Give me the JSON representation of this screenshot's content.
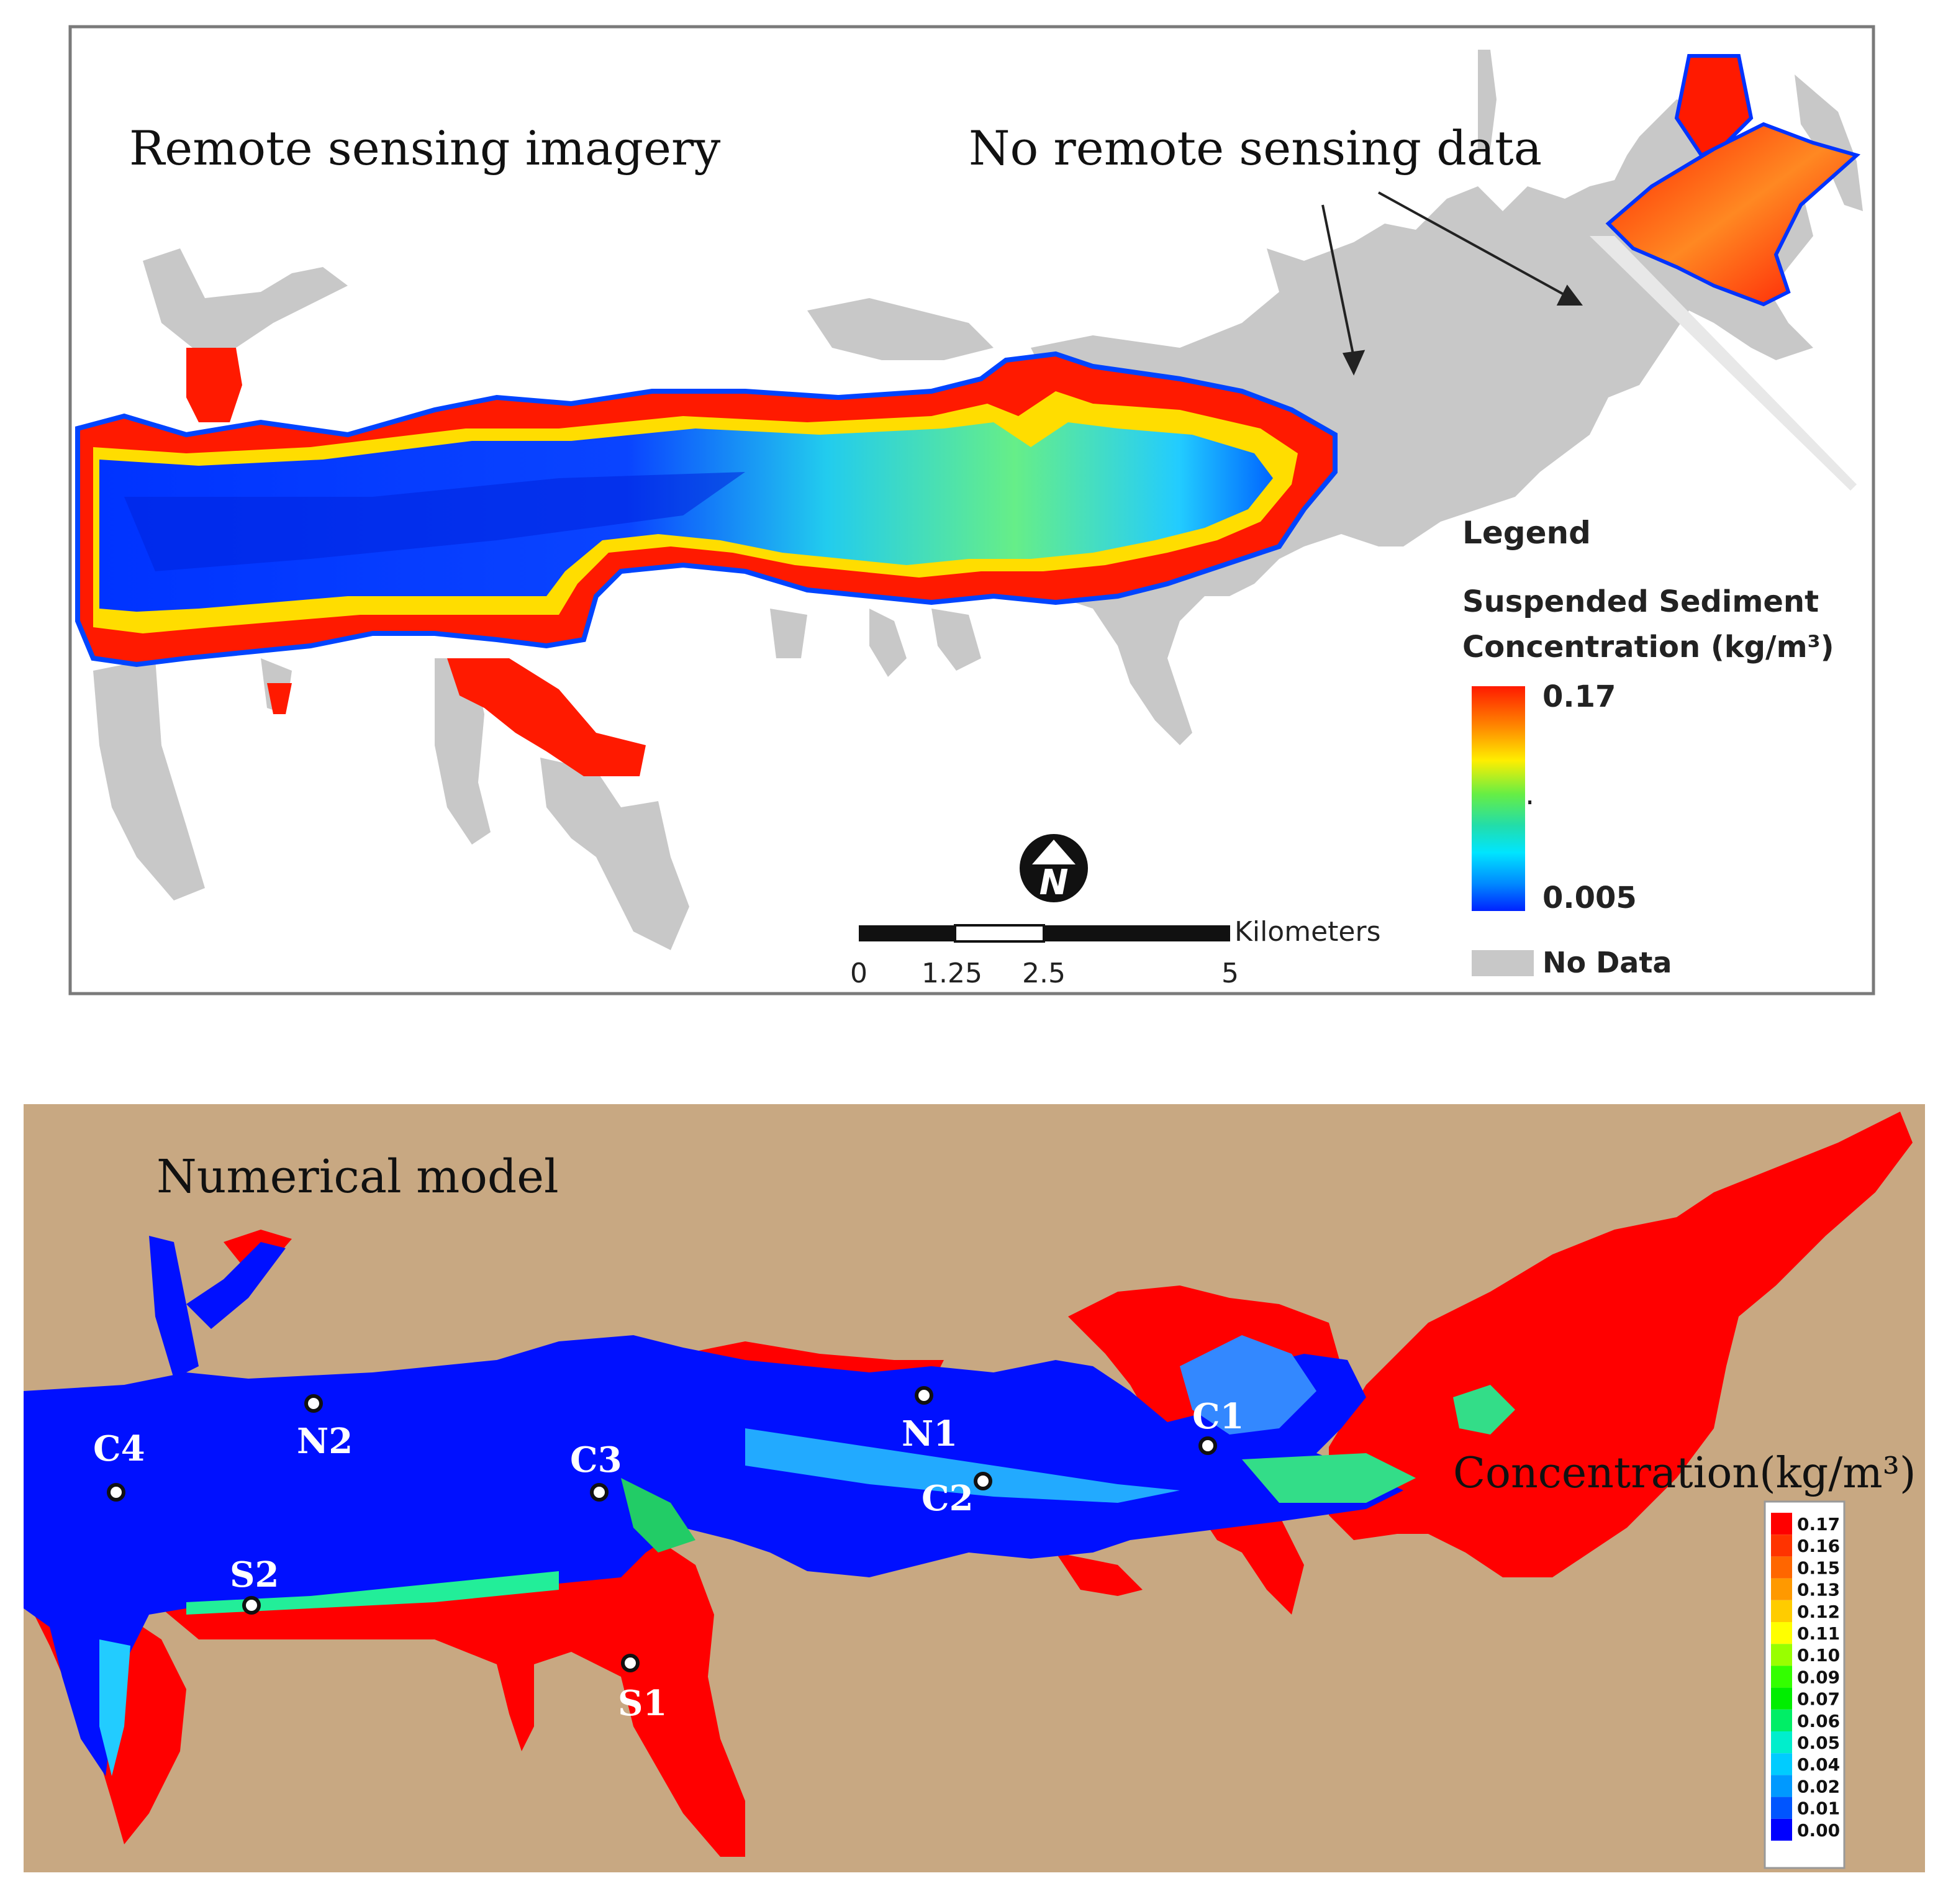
{
  "panel_top": {
    "title": "Remote sensing imagery",
    "annotation": "No remote sensing data",
    "legend": {
      "heading": "Legend",
      "subtitle_line1": "Suspended Sediment",
      "subtitle_line2": "Concentration (kg/m³)",
      "max_label": "0.17",
      "mid_label": ".",
      "min_label": "0.005",
      "nodata_label": "No Data",
      "gradient_colors": [
        "#ff1a00",
        "#ff8800",
        "#ffee00",
        "#66ee44",
        "#22ddaa",
        "#00e5ff",
        "#0088ff",
        "#0022ff"
      ],
      "nodata_color": "#c8c8c8"
    },
    "north_arrow_letter": "N",
    "scale_bar": {
      "unit": "Kilometers",
      "ticks": [
        "0",
        "1.25",
        "2.5",
        "5"
      ]
    }
  },
  "panel_bottom": {
    "title": "Numerical model",
    "legend_title": "Concentration(kg/m³)",
    "legend_levels": [
      "0.17",
      "0.16",
      "0.15",
      "0.13",
      "0.12",
      "0.11",
      "0.10",
      "0.09",
      "0.07",
      "0.06",
      "0.05",
      "0.04",
      "0.02",
      "0.01",
      "0.00"
    ],
    "legend_colors": [
      "#ff0000",
      "#ff3300",
      "#ff6600",
      "#ff9900",
      "#ffcc00",
      "#ffff00",
      "#99ff00",
      "#33ff00",
      "#00ee00",
      "#00ee66",
      "#00eecc",
      "#00ccff",
      "#0099ff",
      "#0055ff",
      "#0000ff"
    ],
    "land_color": "#c8a882",
    "stations": [
      {
        "id": "C4",
        "label": "C4"
      },
      {
        "id": "N2",
        "label": "N2"
      },
      {
        "id": "S2",
        "label": "S2"
      },
      {
        "id": "C3",
        "label": "C3"
      },
      {
        "id": "S1",
        "label": "S1"
      },
      {
        "id": "N1",
        "label": "N1"
      },
      {
        "id": "C2",
        "label": "C2"
      },
      {
        "id": "C1",
        "label": "C1"
      }
    ]
  }
}
